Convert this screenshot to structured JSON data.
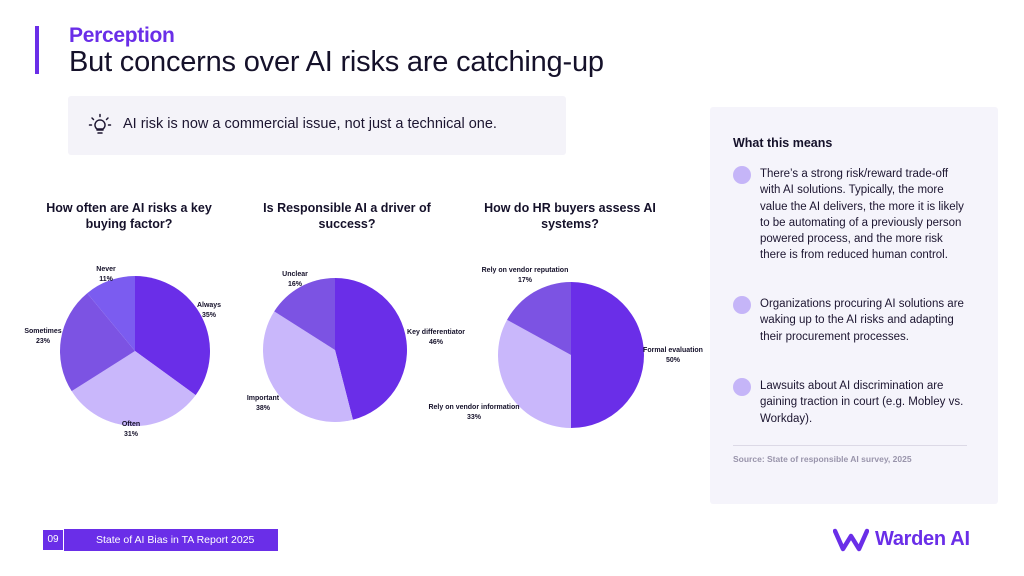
{
  "header": {
    "eyebrow": "Perception",
    "title": "But concerns over AI risks are catching-up"
  },
  "callout": {
    "icon": "lightbulb-icon",
    "text": "AI risk is now a commercial issue, not just a technical one."
  },
  "colors": {
    "accent": "#6a2ee8",
    "slice_dark": "#6a2ee8",
    "slice_mid": "#7c53e3",
    "slice_light": "#c9b7fb",
    "dot": "#c5b5f8"
  },
  "chart_data": [
    {
      "type": "pie",
      "title": "How often are AI risks a key buying factor?",
      "slices": [
        {
          "label": "Always",
          "value": 35,
          "display": "35%",
          "color": "#6a2ee8"
        },
        {
          "label": "Often",
          "value": 31,
          "display": "31%",
          "color": "#c9b7fb"
        },
        {
          "label": "Sometimes",
          "value": 23,
          "display": "23%",
          "color": "#7c53e3"
        },
        {
          "label": "Never",
          "value": 11,
          "display": "11%",
          "color": "#7b5cf0"
        }
      ]
    },
    {
      "type": "pie",
      "title": "Is Responsible AI a driver of success?",
      "slices": [
        {
          "label": "Key differentiator",
          "value": 46,
          "display": "46%",
          "color": "#6a2ee8"
        },
        {
          "label": "Important",
          "value": 38,
          "display": "38%",
          "color": "#c9b7fb"
        },
        {
          "label": "Unclear",
          "value": 16,
          "display": "16%",
          "color": "#7c53e3"
        }
      ]
    },
    {
      "type": "pie",
      "title": "How do HR buyers assess AI systems?",
      "slices": [
        {
          "label": "Formal evaluation",
          "value": 50,
          "display": "50%",
          "color": "#6a2ee8"
        },
        {
          "label": "Rely on vendor information",
          "value": 33,
          "display": "33%",
          "color": "#c9b7fb"
        },
        {
          "label": "Rely on vendor reputation",
          "value": 17,
          "display": "17%",
          "color": "#7c53e3"
        }
      ]
    }
  ],
  "panel": {
    "title": "What this means",
    "bullets": [
      "There’s a strong risk/reward trade-off with AI solutions. Typically, the more value the AI delivers, the more it is likely to be automating of a previously person  powered process, and the more risk there is from reduced human control.",
      "Organizations procuring AI solutions are waking up to the AI risks and adapting their procurement processes.",
      "Lawsuits about AI discrimination are gaining traction in court (e.g. Mobley vs. Workday)."
    ],
    "source": "Source: State of responsible AI survey, 2025"
  },
  "footer": {
    "page_number": "09",
    "report_title": "State of AI Bias in TA Report 2025"
  },
  "logo": {
    "icon": "warden-logo-icon",
    "name": "Warden AI"
  }
}
